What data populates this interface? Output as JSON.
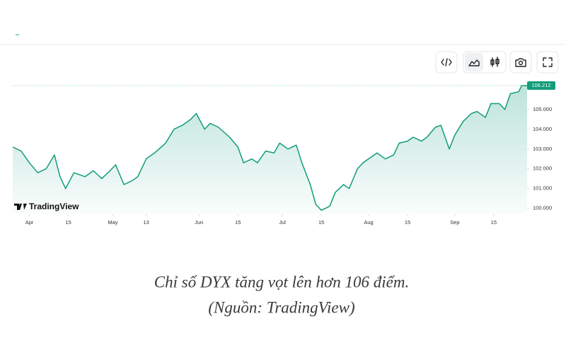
{
  "chart_data": {
    "type": "area",
    "color": "#129c7a",
    "x": [
      -6,
      -3,
      0,
      3,
      6,
      9,
      11,
      13,
      16,
      20,
      23,
      26,
      29,
      31,
      34,
      37,
      39,
      42,
      45,
      49,
      52,
      55,
      58,
      60,
      63,
      65,
      68,
      72,
      75,
      77,
      80,
      82,
      85,
      88,
      90,
      93,
      96,
      98,
      101,
      103,
      105,
      108,
      110,
      113,
      115,
      118,
      120,
      123,
      125,
      128,
      131,
      133,
      136,
      138,
      141,
      143,
      146,
      148,
      151,
      153,
      156,
      159,
      161,
      164,
      166,
      169,
      171,
      173,
      176,
      177,
      179
    ],
    "values": [
      103.1,
      102.9,
      102.3,
      101.8,
      102.0,
      102.7,
      101.6,
      101.0,
      101.8,
      101.6,
      101.9,
      101.5,
      101.9,
      102.2,
      101.2,
      101.4,
      101.6,
      102.5,
      102.8,
      103.3,
      104.0,
      104.2,
      104.5,
      104.8,
      104.0,
      104.3,
      104.1,
      103.6,
      103.1,
      102.3,
      102.5,
      102.3,
      102.9,
      102.8,
      103.3,
      103.0,
      103.2,
      102.3,
      101.2,
      100.2,
      99.9,
      100.1,
      100.8,
      101.2,
      101.0,
      102.0,
      102.3,
      102.6,
      102.8,
      102.5,
      102.7,
      103.3,
      103.4,
      103.6,
      103.4,
      103.6,
      104.1,
      104.2,
      103.0,
      103.7,
      104.4,
      104.8,
      104.9,
      104.6,
      105.3,
      105.3,
      105.0,
      105.8,
      105.9,
      106.2,
      106.212
    ],
    "xlim": [
      -6,
      179
    ],
    "xticks": [
      {
        "value": 0,
        "label": "Apr"
      },
      {
        "value": 14,
        "label": "15"
      },
      {
        "value": 30,
        "label": "May"
      },
      {
        "value": 42,
        "label": "13"
      },
      {
        "value": 61,
        "label": "Jun"
      },
      {
        "value": 75,
        "label": "15"
      },
      {
        "value": 91,
        "label": "Jul"
      },
      {
        "value": 105,
        "label": "15"
      },
      {
        "value": 122,
        "label": "Aug"
      },
      {
        "value": 136,
        "label": "15"
      },
      {
        "value": 153,
        "label": "Sep"
      },
      {
        "value": 167,
        "label": "15"
      }
    ],
    "ylim": [
      99.7,
      106.32
    ],
    "yticks": [
      {
        "value": 100,
        "label": "100.000"
      },
      {
        "value": 101,
        "label": "101.000"
      },
      {
        "value": 102,
        "label": "102.000"
      },
      {
        "value": 103,
        "label": "103.000"
      },
      {
        "value": 104,
        "label": "104.000"
      },
      {
        "value": 105,
        "label": "105.000"
      }
    ],
    "watermark": "TradingView",
    "caption": [
      "Chỉ số DYX tăng vọt lên hơn 106 điểm.",
      "(Nguồn: TradingView)"
    ]
  }
}
